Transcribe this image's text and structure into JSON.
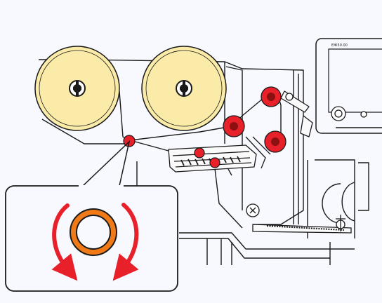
{
  "figure": {
    "panel_label": "ЕЖ50.00",
    "colors": {
      "background": "#f8f9ff",
      "line": "#1a1a1a",
      "ribbon_roll": "#fbeba8",
      "roller": "#e8202a",
      "roller_hub": "#8b1010",
      "callout_ring": "#f07a18",
      "arrow": "#e8202a"
    },
    "icons": {
      "rotate_cw": "rotate-clockwise-arrow-icon",
      "rotate_ccw": "rotate-counterclockwise-arrow-icon"
    }
  }
}
